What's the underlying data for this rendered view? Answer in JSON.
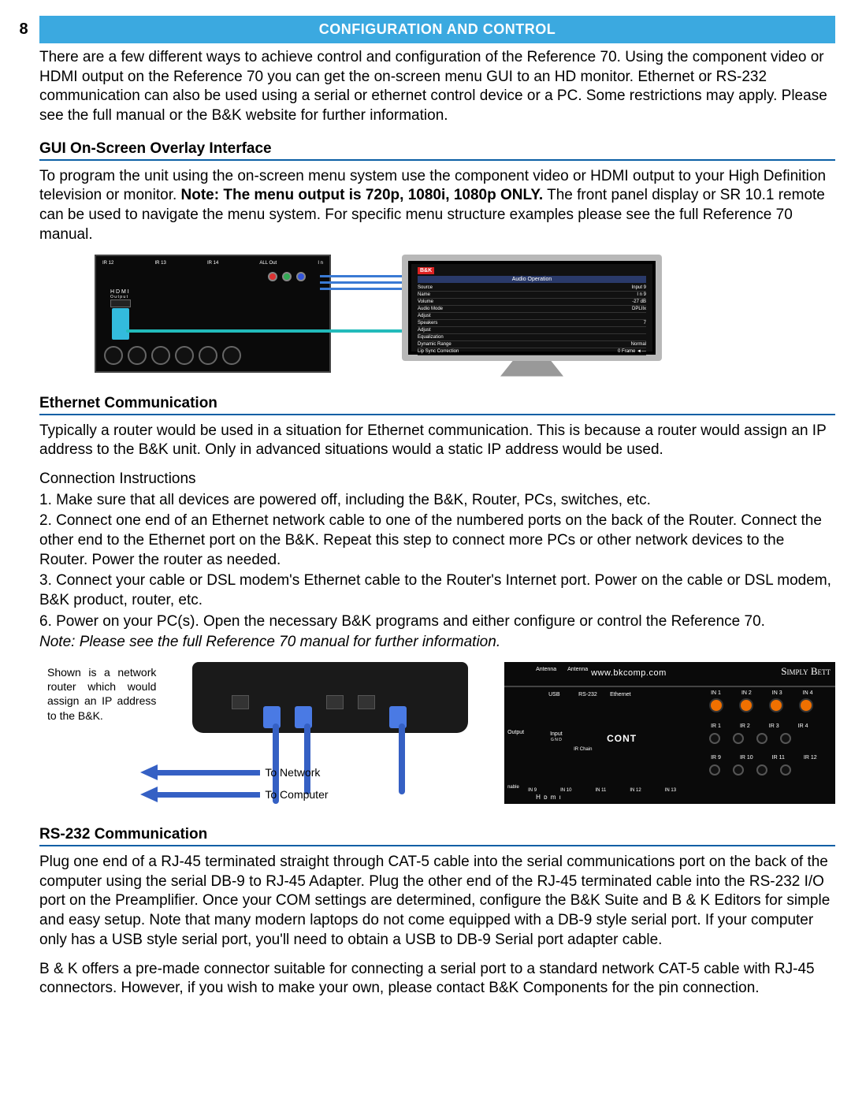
{
  "page_number": "8",
  "header": "CONFIGURATION AND CONTROL",
  "intro": "There are a few different ways to achieve control and configuration of the Reference 70. Using the component video or HDMI output on the Reference 70 you can get the on-screen menu GUI to an HD monitor. Ethernet or RS-232 communication can also be used using a serial or ethernet control device or a PC. Some restrictions may apply. Please see the full manual or the B&K website for further information.",
  "sections": {
    "gui": {
      "title": "GUI On-Screen Overlay Interface",
      "p1a": "To program the unit using the on-screen menu system use the component video or HDMI output to your High Definition television or monitor. ",
      "p1b": "Note: The menu output is 720p, 1080i, 1080p ONLY.",
      "p1c": " The front panel display or SR 10.1 remote can be used to navigate the menu system. For specific menu structure examples please see the full Reference 70 manual.",
      "panel": {
        "hdmi_label": "H D M I",
        "output_label": "O u t p u t"
      },
      "osd": {
        "brand": "B&K",
        "title": "Audio Operation",
        "rows": [
          {
            "l": "Source",
            "r": "Input 9"
          },
          {
            "l": "Name",
            "r": "I n    9"
          },
          {
            "l": "Volume",
            "r": "-27 dB"
          },
          {
            "l": "Audio Mode",
            "r": "DPLIIx"
          },
          {
            "l": "Adjust",
            "r": ""
          },
          {
            "l": "Speakers",
            "r": "7"
          },
          {
            "l": "Adjust",
            "r": ""
          },
          {
            "l": "Equalization",
            "r": ""
          },
          {
            "l": "Dynamic Range",
            "r": "Normal"
          },
          {
            "l": "Lip Sync Correction",
            "r": "0  Frame ◄—"
          }
        ]
      }
    },
    "eth": {
      "title": "Ethernet Communication",
      "p1": "Typically a router would be used in a situation for Ethernet communication. This is because a router would assign an IP address to the B&K unit. Only in advanced situations would a static IP address would be used.",
      "ci_label": "Connection Instructions",
      "s1": "1. Make sure that all devices are powered off, including the B&K, Router, PCs, switches, etc.",
      "s2": "2. Connect one end of an Ethernet network cable to one of the numbered ports on the back of the Router. Connect the other end to the Ethernet port on the B&K. Repeat this step to connect more PCs or other network devices to the Router. Power the router as needed.",
      "s3": "3. Connect your cable or DSL modem's Ethernet cable to the Router's Internet port. Power on the cable or DSL modem, B&K product, router, etc.",
      "s6": "6. Power on your PC(s). Open the necessary B&K programs and either configure or control the Reference 70.",
      "note": "Note: Please see the full Reference 70 manual for further information.",
      "caption": "Shown is a network router which would assign an IP address to the B&K.",
      "to_network": "To Network",
      "to_computer": "To Computer",
      "bkpanel": {
        "url": "www.bkcomp.com",
        "brand": "Simply Bett",
        "antenna": "Antenna",
        "usb": "USB",
        "rs232": "RS-232",
        "ethernet": "Ethernet",
        "output": "Output",
        "input": "Input",
        "gnd": "G N D",
        "irchain": "IR Chain",
        "in_labels": [
          "IN 1",
          "IN 2",
          "IN 3",
          "IN 4"
        ],
        "ir_labels1": [
          "IR 1",
          "IR 2",
          "IR 3",
          "IR 4"
        ],
        "ir_labels2": [
          "IR 9",
          "IR 10",
          "IR 11",
          "IR 12"
        ],
        "in_bottom": [
          "IN 9",
          "IN 10",
          "IN 11",
          "IN 12",
          "IN 13"
        ],
        "cont": "CONT",
        "hdmi": "H ᴅ m ı"
      }
    },
    "rs232": {
      "title": "RS-232 Communication",
      "p1": "Plug one end of a RJ-45 terminated straight through CAT-5 cable into the serial communications port on the back of the computer using the serial DB-9 to RJ-45 Adapter.  Plug the other end of the RJ-45 terminated cable into the RS-232 I/O port on the Preamplifier. Once your COM settings are determined, configure the B&K Suite and B & K Editors for simple and easy setup. Note that many modern laptops do not come equipped with a DB-9 style serial port. If your computer only has a USB style serial port, you'll need to obtain a USB to DB-9 Serial port adapter cable.",
      "p2": "B & K offers a pre-made connector suitable for connecting a serial port to a standard network CAT-5 cable with RJ-45 connectors. However, if you wish to make your own, please contact B&K Components for the pin connection."
    }
  },
  "colors": {
    "header_bg": "#3ba9e0",
    "section_underline": "#0b5fa5",
    "cable_blue": "#3560c4",
    "hdmi_cyan": "#2bb",
    "orange_jack": "#f07000"
  }
}
